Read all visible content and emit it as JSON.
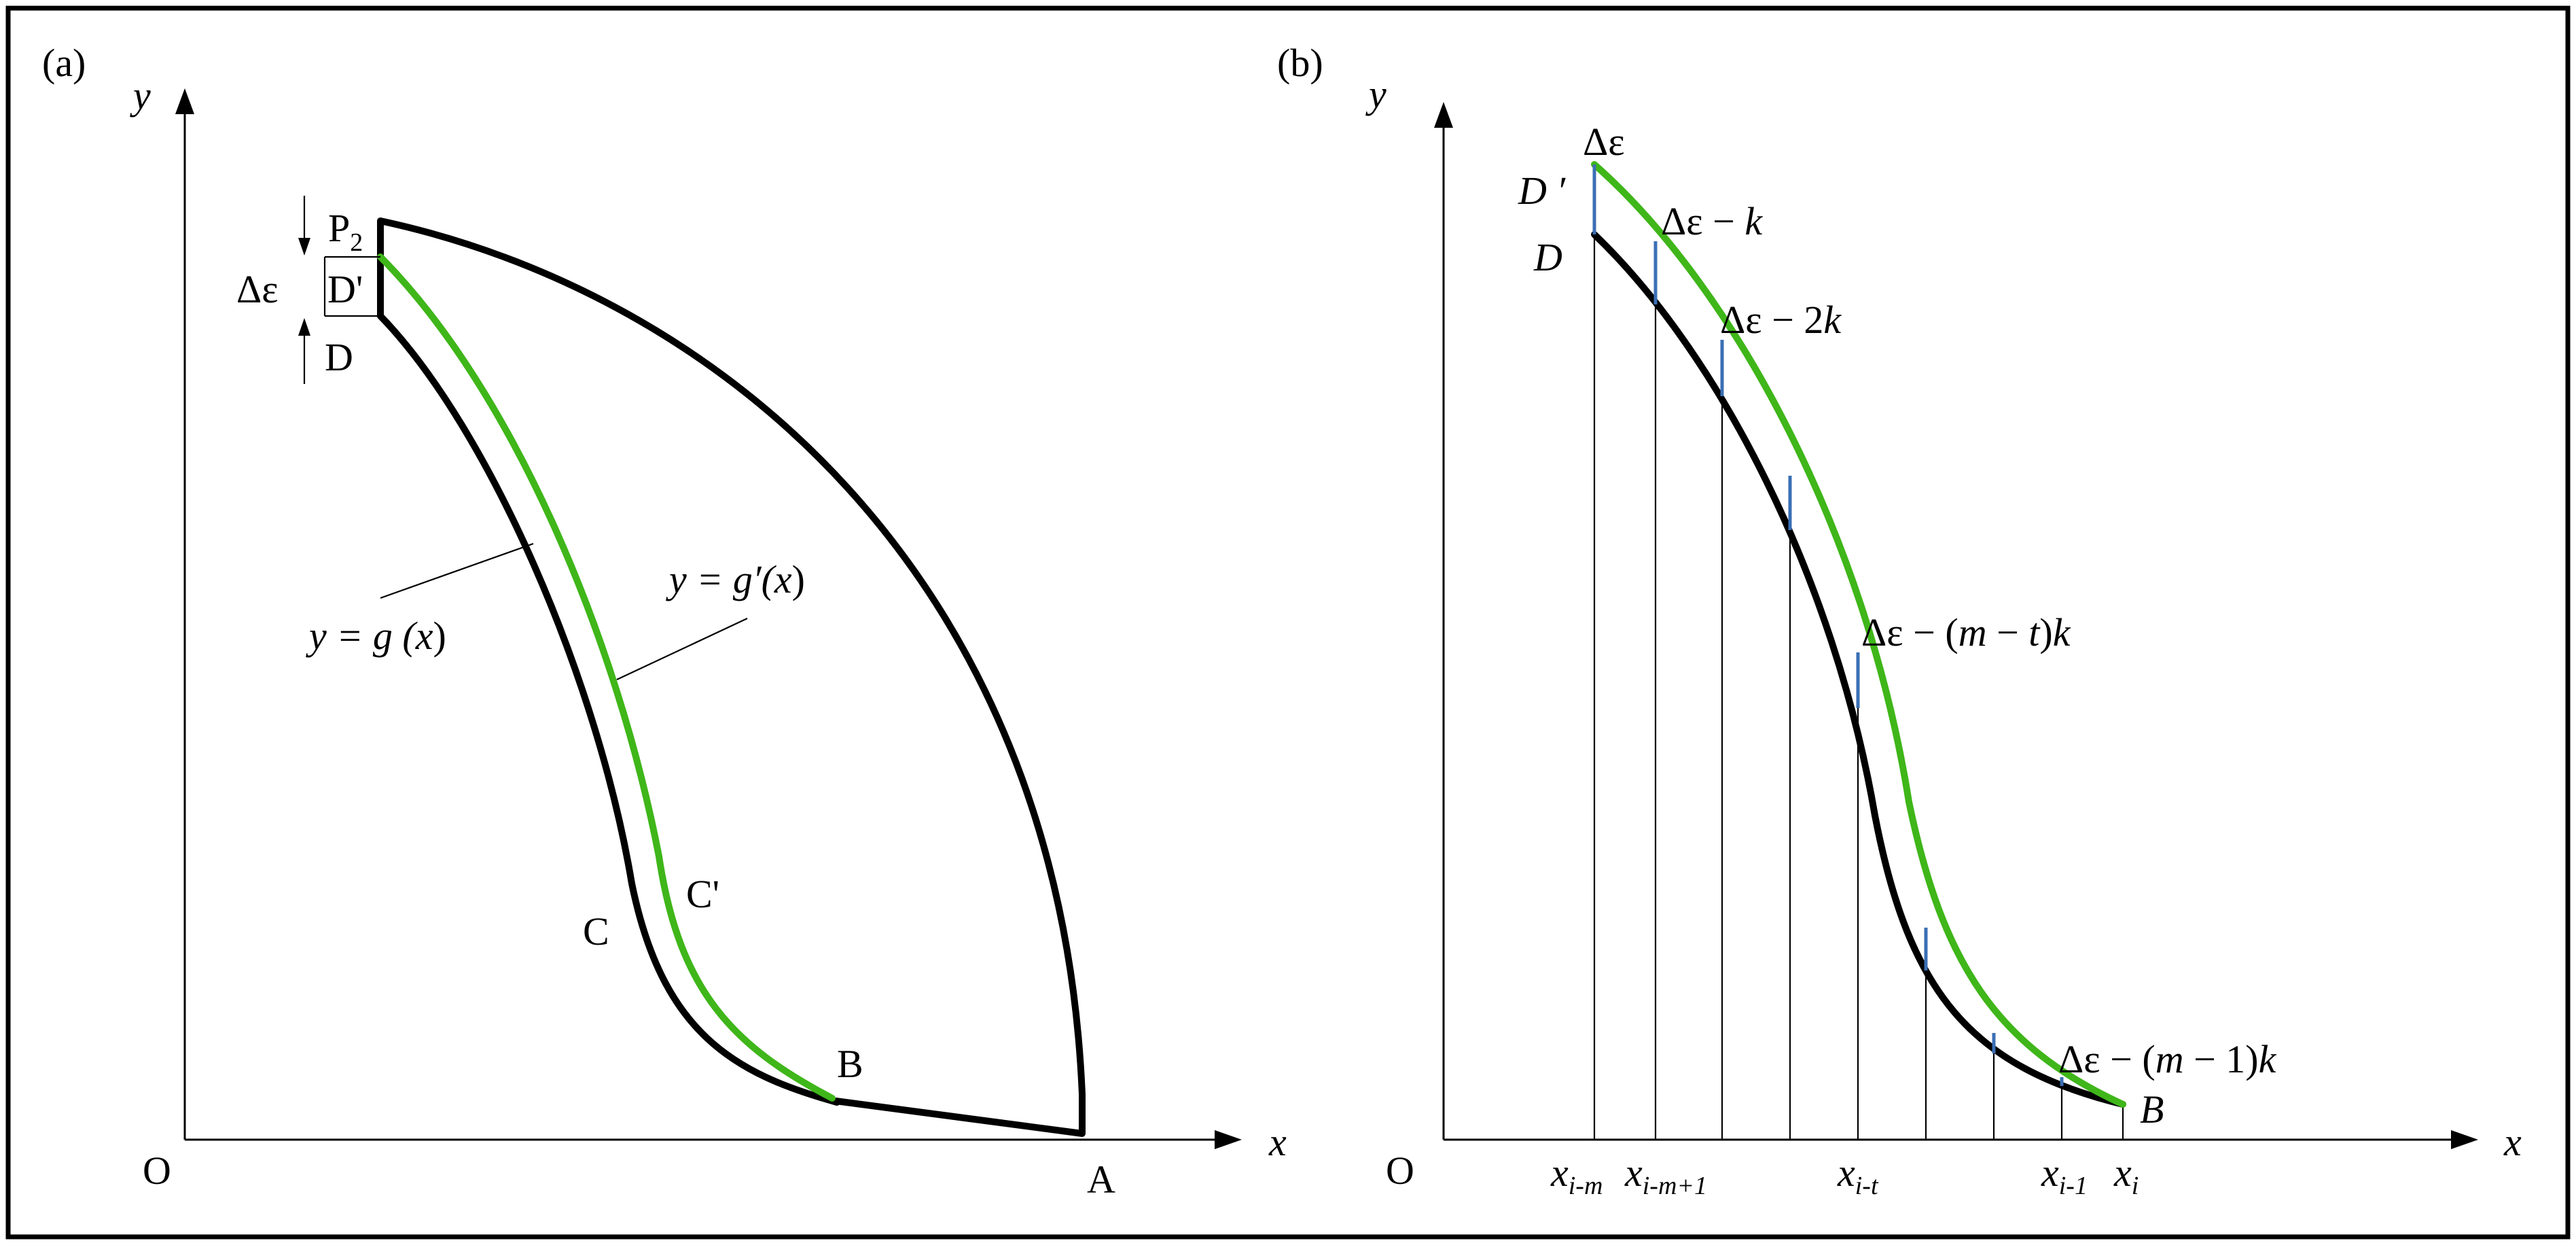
{
  "colors": {
    "curve_original": "#000000",
    "curve_offset": "#3fb619",
    "increment_marks": "#3b6fb5"
  },
  "panel_a": {
    "tag": "(a)",
    "axis_y": "y",
    "axis_x": "x",
    "origin": "O",
    "point_p2": "P",
    "point_p2_sub": "2",
    "point_d_prime": "D'",
    "point_d": "D",
    "delta_eps": "Δε",
    "point_c": "C",
    "point_c_prime": "C'",
    "point_b": "B",
    "point_a": "A",
    "eq_g_pre": "y = g (",
    "eq_g_var": "x",
    "eq_g_post": ")",
    "eq_gprime_pre": "y = g′(",
    "eq_gprime_var": "x",
    "eq_gprime_post": ")"
  },
  "panel_b": {
    "tag": "(b)",
    "axis_y": "y",
    "axis_x": "x",
    "origin": "O",
    "point_d_prime": "D ′",
    "point_d": "D",
    "point_b": "B",
    "labels": {
      "l0": "Δε",
      "l1_pre": "Δε − ",
      "l1_k": "k",
      "l2_pre": "Δε − 2",
      "l2_k": "k",
      "l3_pre": "Δε − (",
      "l3_m": "m",
      "l3_mid": " − ",
      "l3_t": "t",
      "l3_post": ")",
      "l3_k": "k",
      "l4_pre": "Δε − (",
      "l4_m": "m",
      "l4_post": " − 1)",
      "l4_k": "k"
    },
    "ticks": {
      "x_base": "x",
      "sub_im": "i-m",
      "sub_im1": "i-m+1",
      "sub_it": "i-t",
      "sub_i1": "i-1",
      "sub_i": "i"
    }
  }
}
